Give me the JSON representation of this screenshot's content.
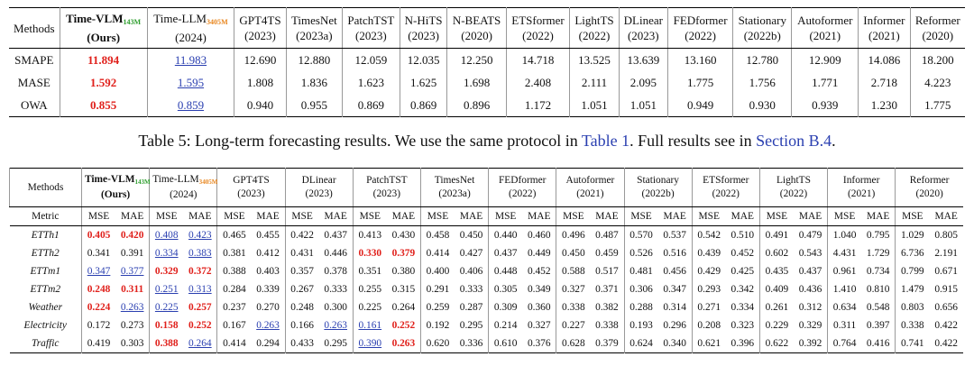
{
  "table1": {
    "corner": "Methods",
    "methods": [
      {
        "name": "Time-VLM",
        "size": "143M",
        "year": "(Ours)"
      },
      {
        "name": "Time-LLM",
        "size": "3405M",
        "year": "(2024)"
      },
      {
        "name": "GPT4TS",
        "year": "(2023)"
      },
      {
        "name": "TimesNet",
        "year": "(2023a)"
      },
      {
        "name": "PatchTST",
        "year": "(2023)"
      },
      {
        "name": "N-HiTS",
        "year": "(2023)"
      },
      {
        "name": "N-BEATS",
        "year": "(2020)"
      },
      {
        "name": "ETSformer",
        "year": "(2022)"
      },
      {
        "name": "LightTS",
        "year": "(2022)"
      },
      {
        "name": "DLinear",
        "year": "(2023)"
      },
      {
        "name": "FEDformer",
        "year": "(2022)"
      },
      {
        "name": "Stationary",
        "year": "(2022b)"
      },
      {
        "name": "Autoformer",
        "year": "(2021)"
      },
      {
        "name": "Informer",
        "year": "(2021)"
      },
      {
        "name": "Reformer",
        "year": "(2020)"
      }
    ],
    "rows": [
      {
        "label": "SMAPE",
        "values": [
          "11.894",
          "11.983",
          "12.690",
          "12.880",
          "12.059",
          "12.035",
          "12.250",
          "14.718",
          "13.525",
          "13.639",
          "13.160",
          "12.780",
          "12.909",
          "14.086",
          "18.200"
        ]
      },
      {
        "label": "MASE",
        "values": [
          "1.592",
          "1.595",
          "1.808",
          "1.836",
          "1.623",
          "1.625",
          "1.698",
          "2.408",
          "2.111",
          "2.095",
          "1.775",
          "1.756",
          "1.771",
          "2.718",
          "4.223"
        ]
      },
      {
        "label": "OWA",
        "values": [
          "0.855",
          "0.859",
          "0.940",
          "0.955",
          "0.869",
          "0.869",
          "0.896",
          "1.172",
          "1.051",
          "1.051",
          "0.949",
          "0.930",
          "0.939",
          "1.230",
          "1.775"
        ]
      }
    ]
  },
  "caption": {
    "prefix": "Table 5: Long-term forecasting results. We use the same protocol in ",
    "link1": "Table 1",
    "middle": ". Full results see in ",
    "link2": "Section B.4",
    "suffix": "."
  },
  "table2": {
    "corner": "Methods",
    "metric_label": "Metric",
    "metrics": [
      "MSE",
      "MAE"
    ],
    "methods": [
      {
        "name": "Time-VLM",
        "size": "143M",
        "year": "(Ours)"
      },
      {
        "name": "Time-LLM",
        "size": "3405M",
        "year": "(2024)"
      },
      {
        "name": "GPT4TS",
        "year": "(2023)"
      },
      {
        "name": "DLinear",
        "year": "(2023)"
      },
      {
        "name": "PatchTST",
        "year": "(2023)"
      },
      {
        "name": "TimesNet",
        "year": "(2023a)"
      },
      {
        "name": "FEDformer",
        "year": "(2022)"
      },
      {
        "name": "Autoformer",
        "year": "(2021)"
      },
      {
        "name": "Stationary",
        "year": "(2022b)"
      },
      {
        "name": "ETSformer",
        "year": "(2022)"
      },
      {
        "name": "LightTS",
        "year": "(2022)"
      },
      {
        "name": "Informer",
        "year": "(2021)"
      },
      {
        "name": "Reformer",
        "year": "(2020)"
      }
    ],
    "rows": [
      {
        "label": "ETTh1",
        "values": [
          "0.405",
          "0.420",
          "0.408",
          "0.423",
          "0.465",
          "0.455",
          "0.422",
          "0.437",
          "0.413",
          "0.430",
          "0.458",
          "0.450",
          "0.440",
          "0.460",
          "0.496",
          "0.487",
          "0.570",
          "0.537",
          "0.542",
          "0.510",
          "0.491",
          "0.479",
          "1.040",
          "0.795",
          "1.029",
          "0.805"
        ]
      },
      {
        "label": "ETTh2",
        "values": [
          "0.341",
          "0.391",
          "0.334",
          "0.383",
          "0.381",
          "0.412",
          "0.431",
          "0.446",
          "0.330",
          "0.379",
          "0.414",
          "0.427",
          "0.437",
          "0.449",
          "0.450",
          "0.459",
          "0.526",
          "0.516",
          "0.439",
          "0.452",
          "0.602",
          "0.543",
          "4.431",
          "1.729",
          "6.736",
          "2.191"
        ]
      },
      {
        "label": "ETTm1",
        "values": [
          "0.347",
          "0.377",
          "0.329",
          "0.372",
          "0.388",
          "0.403",
          "0.357",
          "0.378",
          "0.351",
          "0.380",
          "0.400",
          "0.406",
          "0.448",
          "0.452",
          "0.588",
          "0.517",
          "0.481",
          "0.456",
          "0.429",
          "0.425",
          "0.435",
          "0.437",
          "0.961",
          "0.734",
          "0.799",
          "0.671"
        ]
      },
      {
        "label": "ETTm2",
        "values": [
          "0.248",
          "0.311",
          "0.251",
          "0.313",
          "0.284",
          "0.339",
          "0.267",
          "0.333",
          "0.255",
          "0.315",
          "0.291",
          "0.333",
          "0.305",
          "0.349",
          "0.327",
          "0.371",
          "0.306",
          "0.347",
          "0.293",
          "0.342",
          "0.409",
          "0.436",
          "1.410",
          "0.810",
          "1.479",
          "0.915"
        ]
      },
      {
        "label": "Weather",
        "values": [
          "0.224",
          "0.263",
          "0.225",
          "0.257",
          "0.237",
          "0.270",
          "0.248",
          "0.300",
          "0.225",
          "0.264",
          "0.259",
          "0.287",
          "0.309",
          "0.360",
          "0.338",
          "0.382",
          "0.288",
          "0.314",
          "0.271",
          "0.334",
          "0.261",
          "0.312",
          "0.634",
          "0.548",
          "0.803",
          "0.656"
        ]
      },
      {
        "label": "Electricity",
        "values": [
          "0.172",
          "0.273",
          "0.158",
          "0.252",
          "0.167",
          "0.263",
          "0.166",
          "0.263",
          "0.161",
          "0.252",
          "0.192",
          "0.295",
          "0.214",
          "0.327",
          "0.227",
          "0.338",
          "0.193",
          "0.296",
          "0.208",
          "0.323",
          "0.229",
          "0.329",
          "0.311",
          "0.397",
          "0.338",
          "0.422"
        ]
      },
      {
        "label": "Traffic",
        "values": [
          "0.419",
          "0.303",
          "0.388",
          "0.264",
          "0.414",
          "0.294",
          "0.433",
          "0.295",
          "0.390",
          "0.263",
          "0.620",
          "0.336",
          "0.610",
          "0.376",
          "0.628",
          "0.379",
          "0.624",
          "0.340",
          "0.621",
          "0.396",
          "0.622",
          "0.392",
          "0.764",
          "0.416",
          "0.741",
          "0.422"
        ]
      }
    ]
  }
}
